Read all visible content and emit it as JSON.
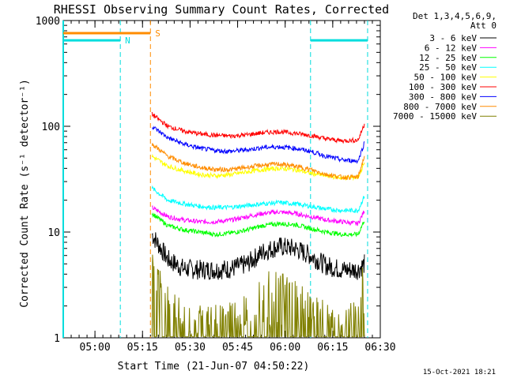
{
  "chart_data": {
    "type": "line",
    "title": "RHESSI Observing Summary Count Rates, Corrected",
    "xlabel": "Start Time (21-Jun-07 04:50:22)",
    "ylabel": "Corrected Count Rate (s⁻¹ detector⁻¹)",
    "yscale": "log",
    "ylim": [
      1,
      1000
    ],
    "xlim_minutes_after_0450": [
      0,
      100
    ],
    "x_tick_labels": [
      "05:00",
      "05:15",
      "05:30",
      "05:45",
      "06:00",
      "06:15",
      "06:30"
    ],
    "x_tick_minutes": [
      10,
      25,
      40,
      55,
      70,
      85,
      100
    ],
    "y_tick_labels": [
      "1",
      "10",
      "100",
      "1000"
    ],
    "y_tick_values": [
      1,
      10,
      100,
      1000
    ],
    "grid": false,
    "legend_position": "right",
    "legend_header": [
      "Det 1,3,4,5,6,9,",
      "Att 0"
    ],
    "footer_date": "15-Oct-2021 18:21",
    "x_sample_minutes": [
      28,
      33,
      38,
      43,
      48,
      53,
      58,
      63,
      68,
      73,
      78,
      83,
      88,
      93,
      95
    ],
    "series": [
      {
        "name": "3 - 6 keV",
        "color": "#000000",
        "values": [
          9.5,
          5.5,
          4.5,
          4.4,
          4.4,
          4.5,
          5,
          6.5,
          7.3,
          7,
          6,
          4.8,
          4.4,
          4.4,
          5
        ]
      },
      {
        "name": "6 - 12 keV",
        "color": "#ff00ff",
        "values": [
          17,
          14,
          13,
          12.5,
          12.5,
          13,
          14,
          15,
          15.5,
          15,
          14,
          13,
          12.5,
          12,
          16
        ]
      },
      {
        "name": "12 - 25 keV",
        "color": "#00ff00",
        "values": [
          15,
          11.5,
          10.5,
          10,
          9.5,
          9.8,
          10.5,
          11.5,
          12,
          11.8,
          10.8,
          10,
          9.5,
          9.5,
          13
        ]
      },
      {
        "name": "25 - 50 keV",
        "color": "#00ffff",
        "values": [
          26,
          20,
          18.5,
          17.5,
          17,
          17.2,
          17.8,
          18.5,
          19,
          18.5,
          17.5,
          16.5,
          16,
          16,
          22
        ]
      },
      {
        "name": "50 - 100 keV",
        "color": "#ffff00",
        "values": [
          52,
          42,
          38,
          35,
          34,
          35,
          37,
          39,
          40,
          39,
          36,
          34,
          32.5,
          33,
          45
        ]
      },
      {
        "name": "100 - 300 keV",
        "color": "#ff0000",
        "values": [
          130,
          100,
          90,
          85,
          82,
          81,
          83,
          87,
          89,
          86,
          82,
          76,
          73,
          74,
          105
        ]
      },
      {
        "name": "300 - 800 keV",
        "color": "#0000ff",
        "values": [
          100,
          78,
          68,
          62,
          59,
          58,
          60,
          63,
          64,
          62,
          58,
          52,
          48,
          47,
          70
        ]
      },
      {
        "name": "800 - 7000 keV",
        "color": "#ff8c00",
        "values": [
          68,
          52,
          45,
          41,
          39,
          39,
          41,
          43,
          44,
          42,
          39,
          35,
          33,
          33,
          52
        ]
      },
      {
        "name": "7000 - 15000 keV",
        "color": "#808000",
        "values": [
          3,
          1.5,
          1,
          1,
          1,
          1,
          1.2,
          2,
          2,
          1.8,
          1.2,
          1,
          1,
          1,
          3
        ]
      }
    ],
    "flags": [
      {
        "label": "N",
        "color": "#00dddd",
        "intervals_minutes": [
          [
            0,
            18
          ],
          [
            78,
            96
          ]
        ],
        "level": 650
      },
      {
        "label": "S",
        "color": "#ff8c00",
        "intervals_minutes": [
          [
            0,
            27.5
          ]
        ],
        "level": 760
      }
    ],
    "vertical_markers_minutes": [
      {
        "minute": 18,
        "color": "#00dddd"
      },
      {
        "minute": 27.5,
        "color": "#ff8c00"
      },
      {
        "minute": 78,
        "color": "#00dddd"
      },
      {
        "minute": 96,
        "color": "#00dddd"
      }
    ],
    "plot_area_color_left_edge": "#00dddd"
  }
}
